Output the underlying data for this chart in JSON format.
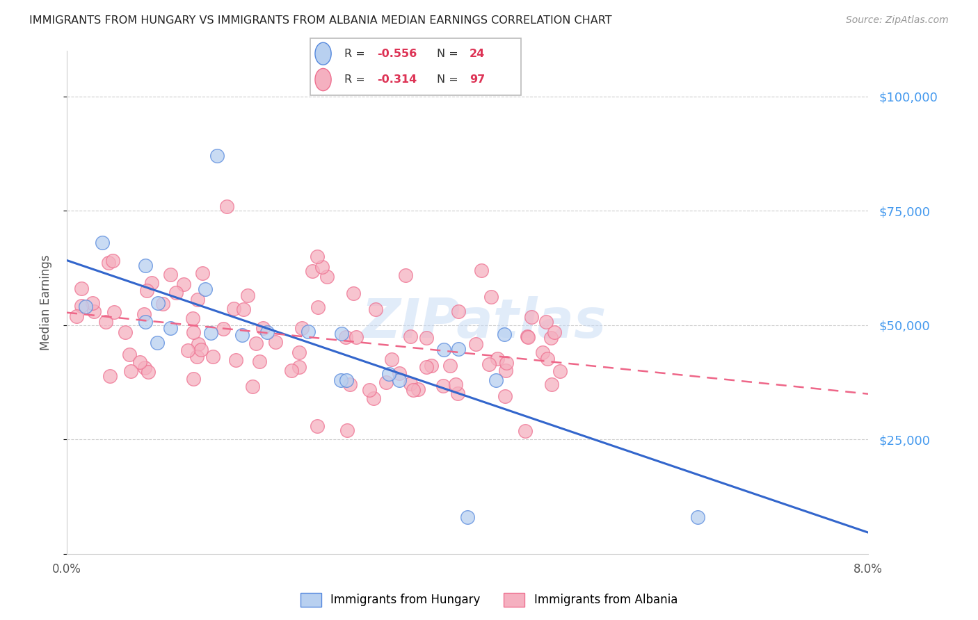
{
  "title": "IMMIGRANTS FROM HUNGARY VS IMMIGRANTS FROM ALBANIA MEDIAN EARNINGS CORRELATION CHART",
  "source": "Source: ZipAtlas.com",
  "ylabel": "Median Earnings",
  "xlim": [
    0.0,
    0.08
  ],
  "ylim": [
    0,
    110000
  ],
  "background_color": "#ffffff",
  "hungary_fill": "#b8d0f0",
  "hungary_edge": "#5588dd",
  "albania_fill": "#f5b0c0",
  "albania_edge": "#ee7090",
  "hungary_line_color": "#3366cc",
  "albania_line_color": "#ee6688",
  "watermark_color": "#c5daf5",
  "ytick_color": "#4499ee",
  "title_color": "#222222",
  "source_color": "#999999",
  "ylabel_color": "#555555",
  "xtick_color": "#555555"
}
